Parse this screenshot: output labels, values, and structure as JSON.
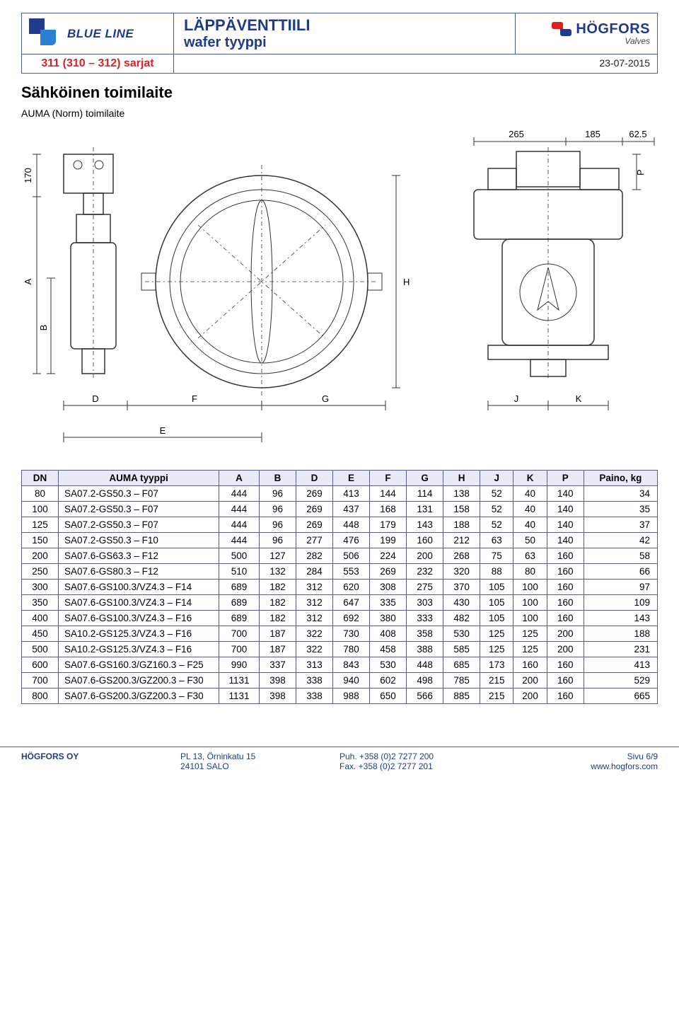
{
  "header": {
    "brand_line": "BLUE LINE",
    "title_line1": "LÄPPÄVENTTIILI",
    "title_line2": "wafer tyyppi",
    "company_name": "HÖGFORS",
    "company_tag": "Valves",
    "series": "311 (310 – 312) sarjat",
    "date": "23-07-2015"
  },
  "section": {
    "title": "Sähköinen toimilaite",
    "subtitle": "AUMA (Norm) toimilaite"
  },
  "drawing": {
    "dims_top": {
      "d1": "265",
      "d2": "185",
      "d3": "62.5"
    },
    "dims_left": {
      "v1": "170",
      "v2": "A",
      "v3": "B"
    },
    "dims_bottom": {
      "D": "D",
      "F": "F",
      "G": "G",
      "E": "E",
      "J": "J",
      "K": "K"
    },
    "dims_right": {
      "H": "H",
      "P": "P"
    }
  },
  "table": {
    "columns": [
      "DN",
      "AUMA tyyppi",
      "A",
      "B",
      "D",
      "E",
      "F",
      "G",
      "H",
      "J",
      "K",
      "P",
      "Paino, kg"
    ],
    "col_widths_pct": [
      5.5,
      24,
      6,
      5.5,
      5.5,
      5.5,
      5.5,
      5.5,
      5.5,
      5,
      5,
      5.5,
      11
    ],
    "rows": [
      [
        "80",
        "SA07.2-GS50.3 – F07",
        "444",
        "96",
        "269",
        "413",
        "144",
        "114",
        "138",
        "52",
        "40",
        "140",
        "34"
      ],
      [
        "100",
        "SA07.2-GS50.3 – F07",
        "444",
        "96",
        "269",
        "437",
        "168",
        "131",
        "158",
        "52",
        "40",
        "140",
        "35"
      ],
      [
        "125",
        "SA07.2-GS50.3 – F07",
        "444",
        "96",
        "269",
        "448",
        "179",
        "143",
        "188",
        "52",
        "40",
        "140",
        "37"
      ],
      [
        "150",
        "SA07.2-GS50.3 – F10",
        "444",
        "96",
        "277",
        "476",
        "199",
        "160",
        "212",
        "63",
        "50",
        "140",
        "42"
      ],
      [
        "200",
        "SA07.6-GS63.3 – F12",
        "500",
        "127",
        "282",
        "506",
        "224",
        "200",
        "268",
        "75",
        "63",
        "160",
        "58"
      ],
      [
        "250",
        "SA07.6-GS80.3 – F12",
        "510",
        "132",
        "284",
        "553",
        "269",
        "232",
        "320",
        "88",
        "80",
        "160",
        "66"
      ],
      [
        "300",
        "SA07.6-GS100.3/VZ4.3 – F14",
        "689",
        "182",
        "312",
        "620",
        "308",
        "275",
        "370",
        "105",
        "100",
        "160",
        "97"
      ],
      [
        "350",
        "SA07.6-GS100.3/VZ4.3 – F14",
        "689",
        "182",
        "312",
        "647",
        "335",
        "303",
        "430",
        "105",
        "100",
        "160",
        "109"
      ],
      [
        "400",
        "SA07.6-GS100.3/VZ4.3 – F16",
        "689",
        "182",
        "312",
        "692",
        "380",
        "333",
        "482",
        "105",
        "100",
        "160",
        "143"
      ],
      [
        "450",
        "SA10.2-GS125.3/VZ4.3 – F16",
        "700",
        "187",
        "322",
        "730",
        "408",
        "358",
        "530",
        "125",
        "125",
        "200",
        "188"
      ],
      [
        "500",
        "SA10.2-GS125.3/VZ4.3 – F16",
        "700",
        "187",
        "322",
        "780",
        "458",
        "388",
        "585",
        "125",
        "125",
        "200",
        "231"
      ],
      [
        "600",
        "SA07.6-GS160.3/GZ160.3 – F25",
        "990",
        "337",
        "313",
        "843",
        "530",
        "448",
        "685",
        "173",
        "160",
        "160",
        "413"
      ],
      [
        "700",
        "SA07.6-GS200.3/GZ200.3 – F30",
        "1131",
        "398",
        "338",
        "940",
        "602",
        "498",
        "785",
        "215",
        "200",
        "160",
        "529"
      ],
      [
        "800",
        "SA07.6-GS200.3/GZ200.3 – F30",
        "1131",
        "398",
        "338",
        "988",
        "650",
        "566",
        "885",
        "215",
        "200",
        "160",
        "665"
      ]
    ]
  },
  "footer": {
    "company": "HÖGFORS OY",
    "addr1": "PL 13, Örninkatu 15",
    "addr2": "24101 SALO",
    "phone": "Puh. +358 (0)2 7277 200",
    "fax": "Fax.  +358 (0)2 7277 201",
    "page": "Sivu 6/9",
    "url": "www.hogfors.com"
  },
  "colors": {
    "brand_blue": "#1f3a8a",
    "brand_red": "#e02020",
    "border": "#4a5a9a",
    "th_bg": "#e8eaf5"
  }
}
